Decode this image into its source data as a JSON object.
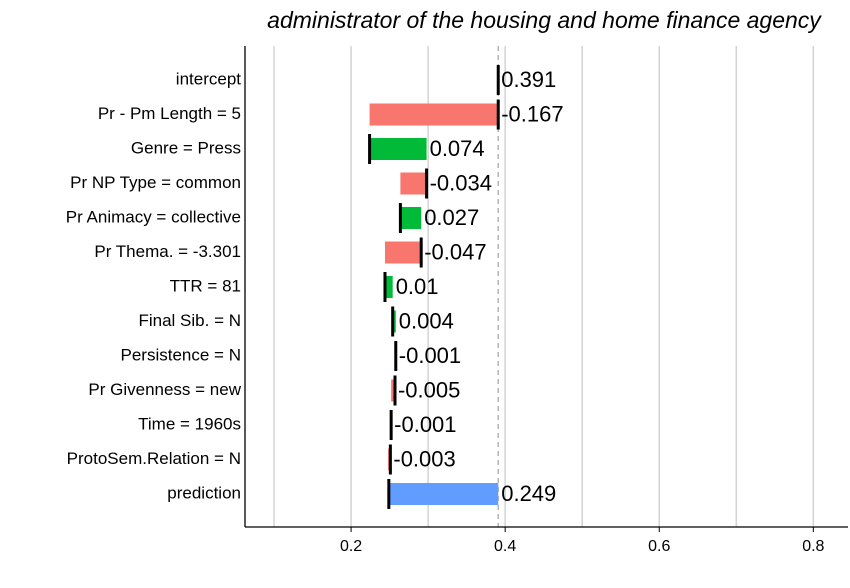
{
  "chart_data": {
    "type": "waterfall",
    "title": "administrator of the housing and home finance agency",
    "categories": [
      "intercept",
      "Pr - Pm Length = 5",
      "Genre = Press",
      "Pr NP Type = common",
      "Pr Animacy = collective",
      "Pr Thema. = -3.301",
      "TTR = 81",
      "Final Sib. = N",
      "Persistence = N",
      "Pr Givenness = new",
      "Time = 1960s",
      "ProtoSem.Relation = N",
      "prediction"
    ],
    "values": [
      0.391,
      -0.167,
      0.074,
      -0.034,
      0.027,
      -0.047,
      0.01,
      0.004,
      -0.001,
      -0.005,
      -0.001,
      -0.003,
      0.249
    ],
    "positive_color": "#00ba38",
    "negative_color": "#f8766d",
    "total_color": "#619cff",
    "xlim": [
      0.0623,
      0.845
    ],
    "xticks": [
      0.2,
      0.4,
      0.6,
      0.8
    ],
    "grid": [
      0.1,
      0.2,
      0.3,
      0.4,
      0.5,
      0.6,
      0.7,
      0.8
    ]
  }
}
